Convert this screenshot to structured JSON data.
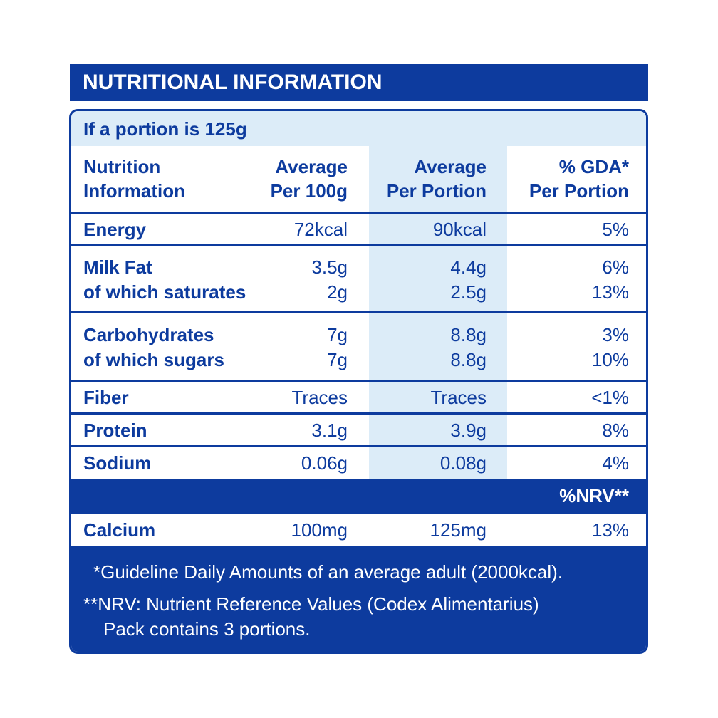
{
  "header": {
    "title": "NUTRITIONAL INFORMATION"
  },
  "portion": "If a portion is 125g",
  "table": {
    "columns": [
      [
        "Nutrition",
        "Information"
      ],
      [
        "Average",
        "Per 100g"
      ],
      [
        "Average",
        "Per Portion"
      ],
      [
        "% GDA*",
        "Per Portion"
      ]
    ],
    "groups": [
      [
        [
          "Energy",
          "72kcal",
          "90kcal",
          "5%"
        ]
      ],
      [
        [
          "Milk Fat",
          "3.5g",
          "4.4g",
          "6%"
        ],
        [
          "of which saturates",
          "2g",
          "2.5g",
          "13%"
        ]
      ],
      [
        [
          "Carbohydrates",
          "7g",
          "8.8g",
          "3%"
        ],
        [
          "of which sugars",
          "7g",
          "8.8g",
          "10%"
        ]
      ],
      [
        [
          "Fiber",
          "Traces",
          "Traces",
          "<1%"
        ]
      ],
      [
        [
          "Protein",
          "3.1g",
          "3.9g",
          "8%"
        ]
      ],
      [
        [
          "Sodium",
          "0.06g",
          "0.08g",
          "4%"
        ]
      ]
    ],
    "nrv_header": "%NRV**",
    "nrv_row": [
      "Calcium",
      "100mg",
      "125mg",
      "13%"
    ]
  },
  "footnotes": [
    "*Guideline Daily Amounts of an average adult (2000kcal).",
    "**NRV: Nutrient Reference Values (Codex Alimentarius)",
    "Pack contains 3 portions."
  ]
}
